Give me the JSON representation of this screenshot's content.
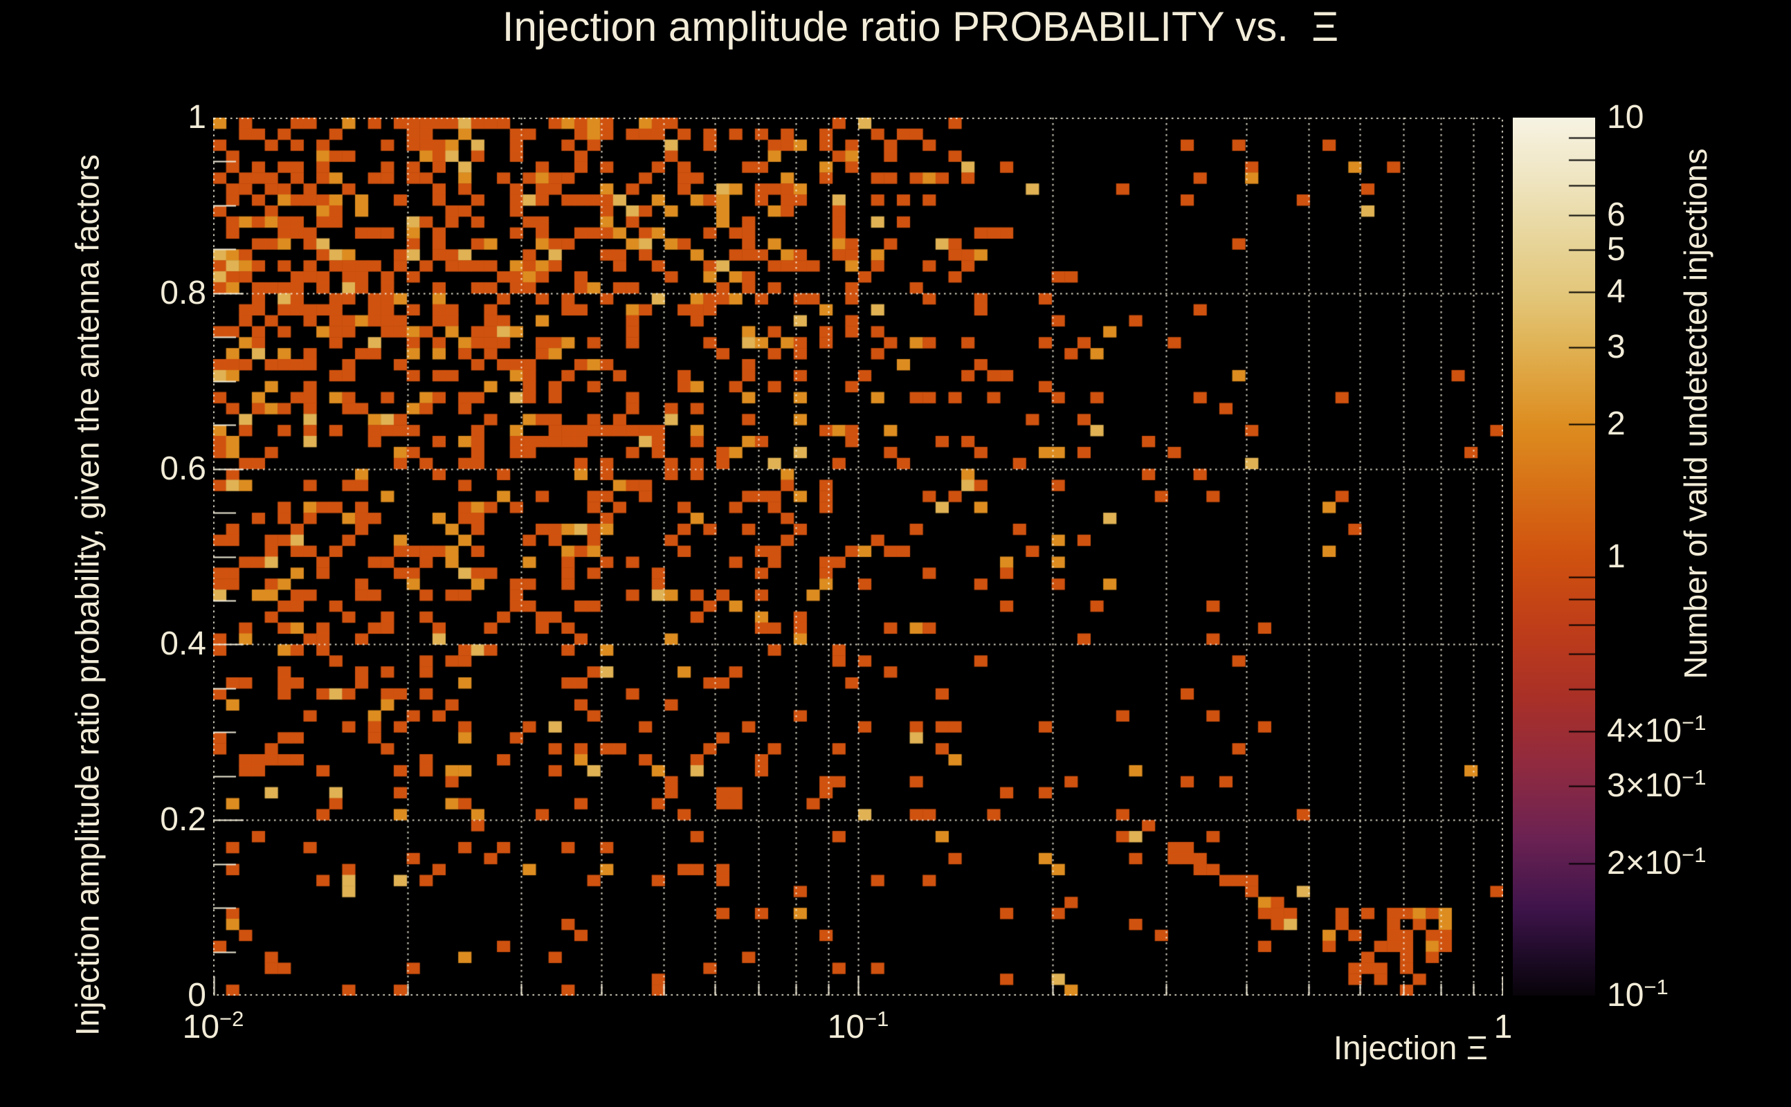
{
  "page": {
    "background_color": "#000000",
    "text_color": "#f2ecd8"
  },
  "chart_data": {
    "type": "heatmap",
    "title": "Injection amplitude ratio PROBABILITY vs.  Ξ",
    "xlabel": "Injection Ξ",
    "ylabel": "Injection amplitude ratio probability, given the antenna factors",
    "colorbar_label": "Number of valid undetected injections",
    "x_scale": "log",
    "x_range": [
      0.01,
      1
    ],
    "y_scale": "linear",
    "y_range": [
      0,
      1
    ],
    "z_scale": "log",
    "z_range": [
      0.1,
      10
    ],
    "grid": {
      "style": "dotted",
      "x_minor_gridlines": true,
      "y_major_gridlines": true,
      "color": "rgba(247,241,222,0.9)"
    },
    "x_ticks": [
      {
        "base": "10",
        "exp": "−2",
        "value": 0.01
      },
      {
        "base": "10",
        "exp": "−1",
        "value": 0.1
      },
      {
        "base": "1",
        "exp": "",
        "value": 1
      }
    ],
    "y_ticks": [
      {
        "label": "1",
        "value": 1
      },
      {
        "label": "0.8",
        "value": 0.8
      },
      {
        "label": "0.6",
        "value": 0.6
      },
      {
        "label": "0.4",
        "value": 0.4
      },
      {
        "label": "0.2",
        "value": 0.2
      },
      {
        "label": "0",
        "value": 0
      }
    ],
    "z_ticks": [
      {
        "base": "10",
        "exp": "",
        "value": 10
      },
      {
        "base": "6",
        "exp": "",
        "value": 6
      },
      {
        "base": "5",
        "exp": "",
        "value": 5
      },
      {
        "base": "4",
        "exp": "",
        "value": 4
      },
      {
        "base": "3",
        "exp": "",
        "value": 3
      },
      {
        "base": "2",
        "exp": "",
        "value": 2
      },
      {
        "base": "1",
        "exp": "",
        "value": 1
      },
      {
        "base": "4×10",
        "exp": "−1",
        "value": 0.4
      },
      {
        "base": "3×10",
        "exp": "−1",
        "value": 0.3
      },
      {
        "base": "2×10",
        "exp": "−1",
        "value": 0.2
      },
      {
        "base": "10",
        "exp": "−1",
        "value": 0.1
      }
    ],
    "bins": {
      "n_cols": 100,
      "n_rows": 80
    },
    "cell_palette": {
      "1": "#d0520f",
      "2": "#dd8d20",
      "3": "#e0b254"
    },
    "colorbar_gradient": [
      [
        0.0,
        "#f7f3e3"
      ],
      [
        0.06,
        "#f0e7c6"
      ],
      [
        0.13,
        "#e8d79f"
      ],
      [
        0.21,
        "#e2c475"
      ],
      [
        0.26,
        "#e0b254"
      ],
      [
        0.35,
        "#dd8d20"
      ],
      [
        0.43,
        "#d66d15"
      ],
      [
        0.5,
        "#d0520f"
      ],
      [
        0.58,
        "#bf3d19"
      ],
      [
        0.66,
        "#a93027"
      ],
      [
        0.74,
        "#8f2a40"
      ],
      [
        0.82,
        "#6b2252"
      ],
      [
        0.9,
        "#3f144b"
      ],
      [
        0.96,
        "#1b0a24"
      ],
      [
        1.0,
        "#080309"
      ]
    ],
    "occupancy_model": {
      "description": "Sparse 2D histogram of mostly single-count bins; fill probability per region, 8 y-bands (top to bottom) by 10 x-bands (left to right, log-x)",
      "seed": 1337,
      "density_grid": [
        [
          0.48,
          0.44,
          0.4,
          0.34,
          0.3,
          0.22,
          0.13,
          0.07,
          0.03,
          0.015
        ],
        [
          0.5,
          0.46,
          0.42,
          0.34,
          0.28,
          0.2,
          0.12,
          0.06,
          0.03,
          0.012
        ],
        [
          0.42,
          0.37,
          0.32,
          0.27,
          0.22,
          0.16,
          0.1,
          0.05,
          0.022,
          0.01
        ],
        [
          0.34,
          0.3,
          0.27,
          0.23,
          0.18,
          0.13,
          0.08,
          0.04,
          0.018,
          0.008
        ],
        [
          0.28,
          0.26,
          0.23,
          0.2,
          0.16,
          0.11,
          0.07,
          0.035,
          0.015,
          0.006
        ],
        [
          0.22,
          0.2,
          0.18,
          0.16,
          0.13,
          0.09,
          0.055,
          0.03,
          0.012,
          0.005
        ],
        [
          0.1,
          0.09,
          0.09,
          0.08,
          0.07,
          0.06,
          0.05,
          0.028,
          0.02,
          0.01
        ],
        [
          0.07,
          0.06,
          0.06,
          0.05,
          0.05,
          0.04,
          0.03,
          0.02,
          0.03,
          0.02
        ]
      ],
      "value_probs": {
        "1": 0.78,
        "2": 0.17,
        "3": 0.05
      },
      "features": [
        {
          "type": "column",
          "col": 0,
          "rows": [
            0,
            60
          ],
          "p": 0.45
        },
        {
          "type": "diagonal",
          "from": [
            70,
            64
          ],
          "to": [
            92,
            78
          ],
          "halfwidth": 1.4,
          "p": 0.5
        },
        {
          "type": "cluster",
          "cols": [
            87,
            95
          ],
          "rows": [
            72,
            78
          ],
          "p": 0.5
        },
        {
          "type": "cluster",
          "cols": [
            14,
            19
          ],
          "rows": [
            79,
            79
          ],
          "p": 0.65
        }
      ]
    },
    "axis_style": {
      "tick_color": "#f2ecd8",
      "colorbar_tick_color": "#000000",
      "x_minor_tick_len": 17,
      "x_major_tick_len": 28,
      "y_minor_tick_len": 33,
      "y_major_tick_len": 44,
      "colorbar_tick_len": 38
    }
  }
}
